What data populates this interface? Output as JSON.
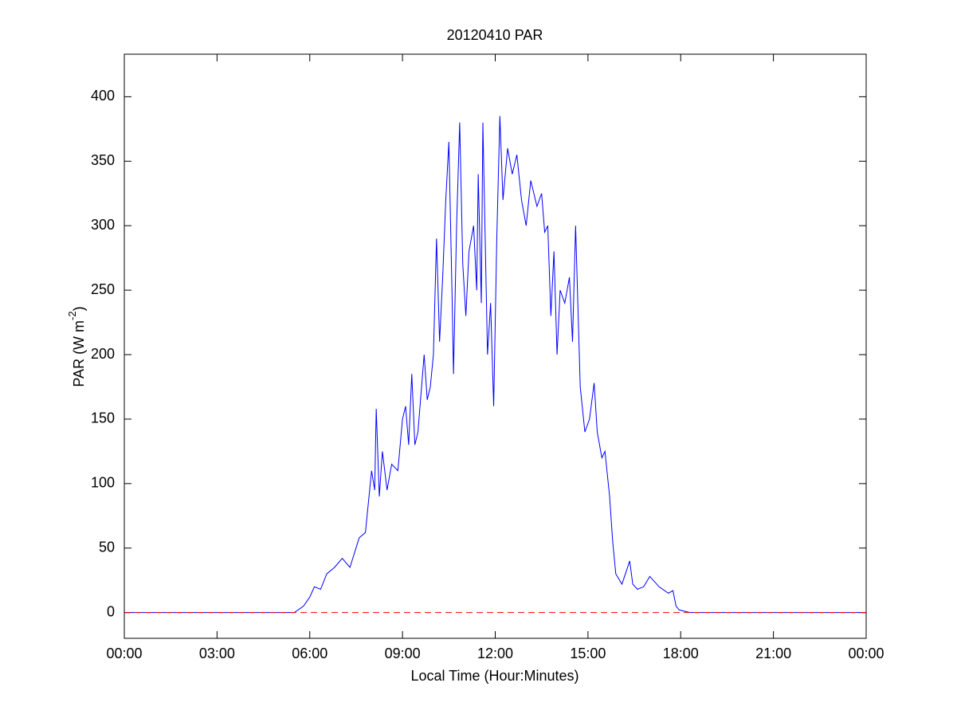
{
  "chart_data": {
    "type": "line",
    "title": "20120410 PAR",
    "xlabel": "Local Time (Hour:Minutes)",
    "ylabel": {
      "text": "PAR (W m",
      "superscript": "-2",
      "suffix": ")"
    },
    "x": [
      0,
      5.5,
      5.8,
      6.0,
      6.15,
      6.35,
      6.55,
      6.8,
      7.05,
      7.3,
      7.6,
      7.8,
      8.0,
      8.1,
      8.15,
      8.25,
      8.35,
      8.5,
      8.65,
      8.85,
      9.0,
      9.1,
      9.2,
      9.3,
      9.4,
      9.5,
      9.6,
      9.7,
      9.8,
      9.9,
      10.0,
      10.1,
      10.2,
      10.3,
      10.4,
      10.5,
      10.6,
      10.65,
      10.75,
      10.85,
      10.95,
      11.05,
      11.15,
      11.3,
      11.4,
      11.45,
      11.55,
      11.6,
      11.7,
      11.75,
      11.85,
      11.95,
      12.05,
      12.15,
      12.25,
      12.4,
      12.55,
      12.7,
      12.85,
      13.0,
      13.15,
      13.35,
      13.5,
      13.6,
      13.7,
      13.8,
      13.9,
      14.0,
      14.1,
      14.25,
      14.4,
      14.5,
      14.6,
      14.75,
      14.9,
      15.05,
      15.2,
      15.3,
      15.45,
      15.55,
      15.7,
      15.8,
      15.9,
      16.1,
      16.35,
      16.45,
      16.6,
      16.8,
      17.0,
      17.3,
      17.6,
      17.75,
      17.85,
      17.95,
      18.3,
      24
    ],
    "series": [
      {
        "color": "#0000ff",
        "values": [
          0,
          0,
          5,
          12,
          20,
          18,
          30,
          35,
          42,
          35,
          58,
          62,
          110,
          95,
          158,
          90,
          125,
          95,
          115,
          110,
          150,
          160,
          130,
          185,
          130,
          140,
          170,
          200,
          165,
          175,
          200,
          290,
          210,
          260,
          320,
          365,
          250,
          185,
          300,
          380,
          270,
          230,
          280,
          300,
          250,
          340,
          240,
          380,
          260,
          200,
          240,
          160,
          290,
          385,
          320,
          360,
          340,
          355,
          320,
          300,
          335,
          315,
          325,
          295,
          300,
          230,
          280,
          200,
          250,
          240,
          260,
          210,
          300,
          175,
          140,
          150,
          178,
          140,
          120,
          125,
          90,
          55,
          30,
          22,
          40,
          22,
          18,
          20,
          28,
          20,
          15,
          17,
          5,
          2,
          0,
          0
        ]
      }
    ],
    "reference_line": {
      "value": 0,
      "color": "#ff0000",
      "style": "dashed"
    },
    "xlim": [
      0,
      24
    ],
    "xticks": [
      {
        "value": 0,
        "label": "00:00"
      },
      {
        "value": 3,
        "label": "03:00"
      },
      {
        "value": 6,
        "label": "06:00"
      },
      {
        "value": 9,
        "label": "09:00"
      },
      {
        "value": 12,
        "label": "12:00"
      },
      {
        "value": 15,
        "label": "15:00"
      },
      {
        "value": 18,
        "label": "18:00"
      },
      {
        "value": 21,
        "label": "21:00"
      },
      {
        "value": 24,
        "label": "00:00"
      }
    ],
    "ylim": [
      -20,
      433
    ],
    "yticks": [
      0,
      50,
      100,
      150,
      200,
      250,
      300,
      350,
      400
    ],
    "grid": false
  }
}
